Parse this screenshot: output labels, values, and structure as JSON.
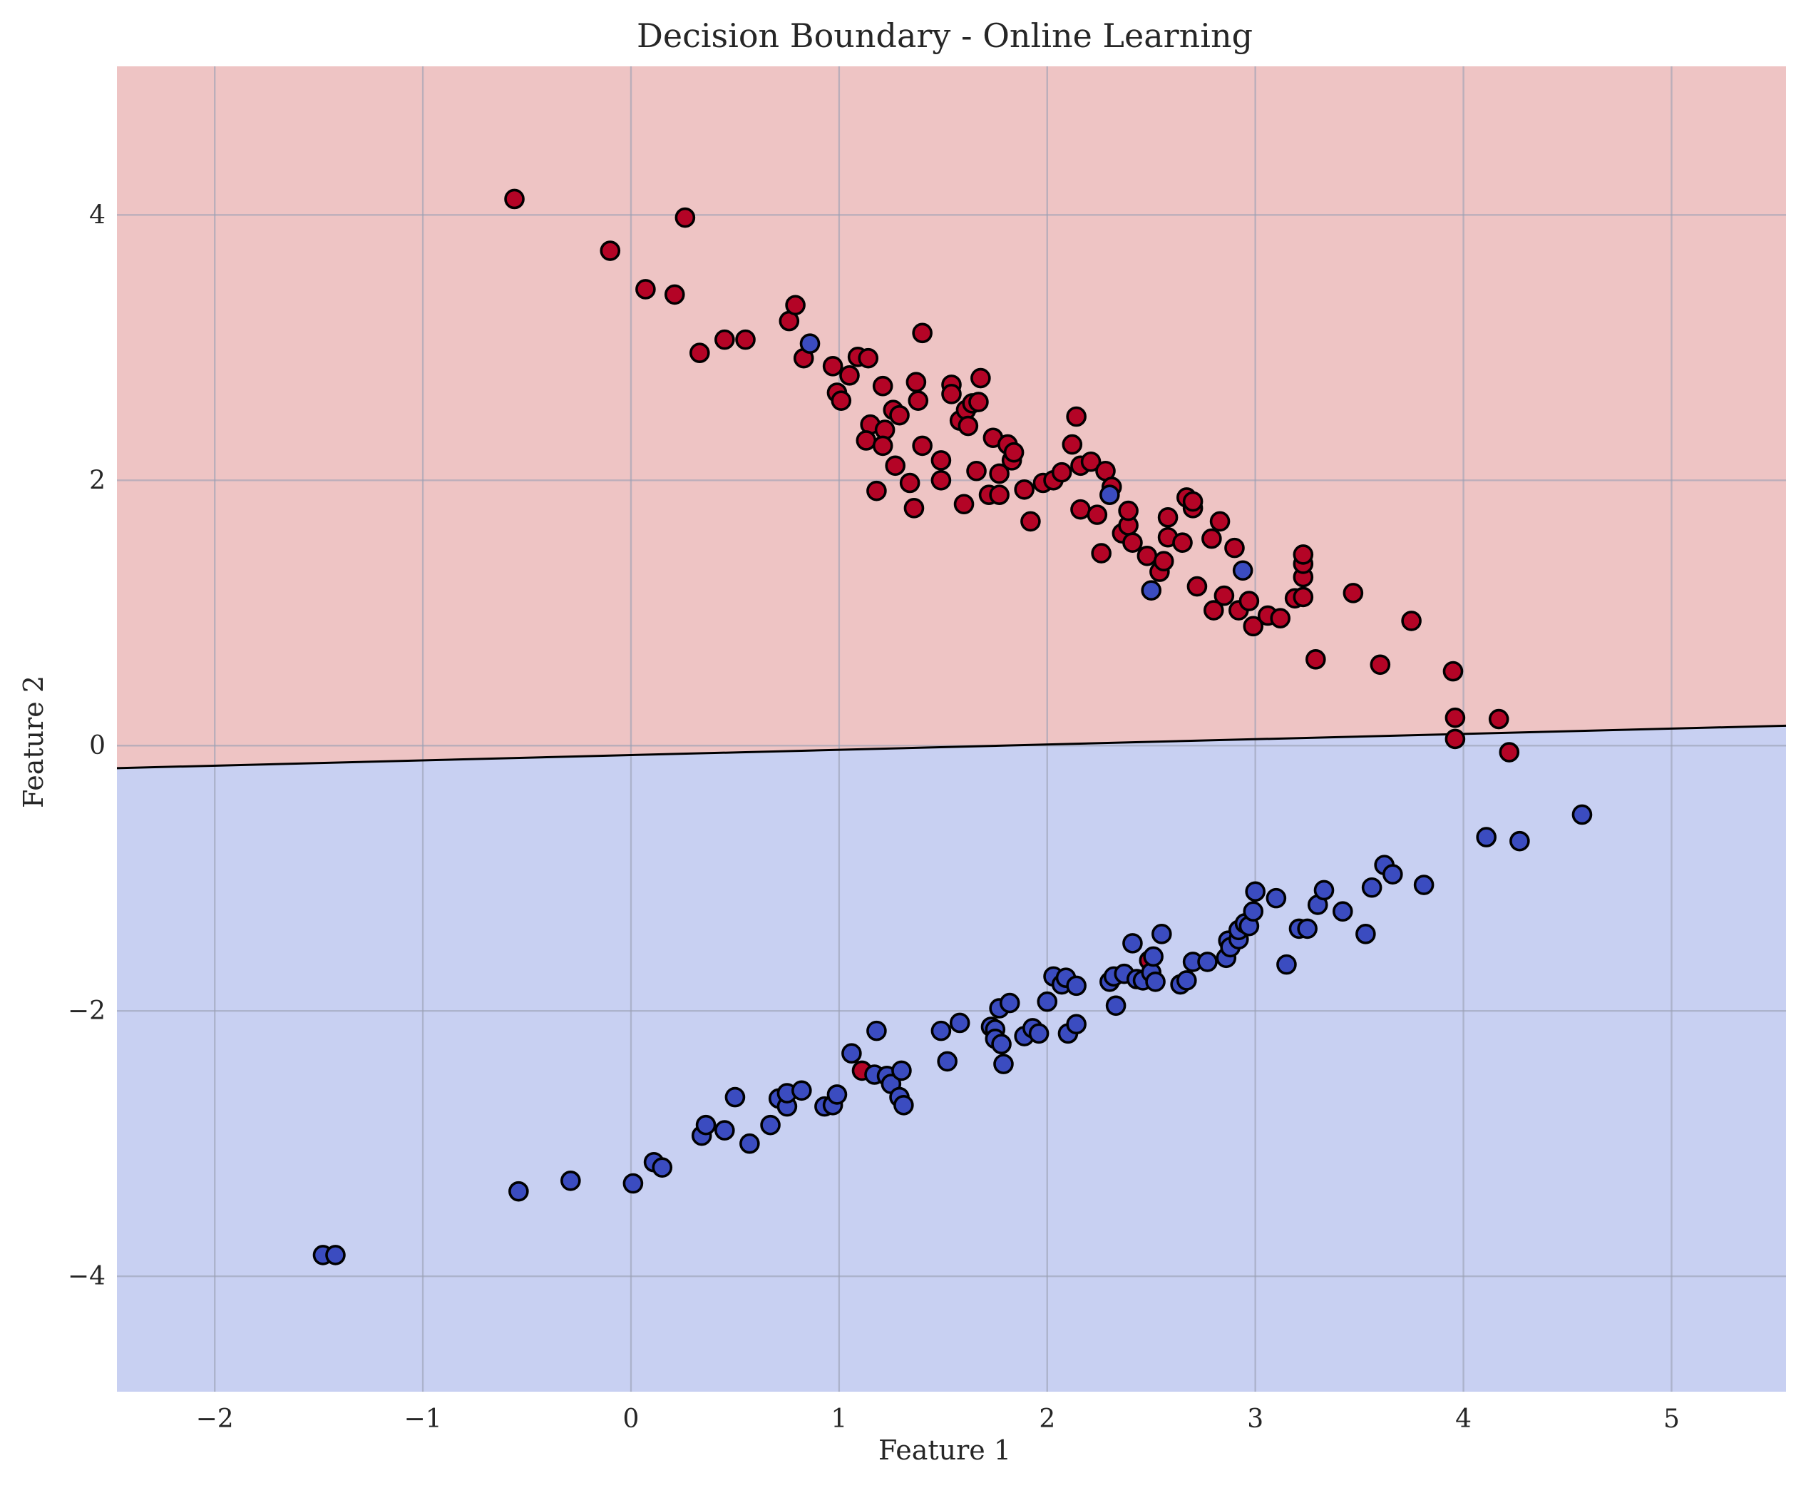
{
  "chart_data": {
    "type": "scatter",
    "title": "Decision Boundary - Online Learning",
    "xlabel": "Feature 1",
    "ylabel": "Feature 2",
    "xlim": [
      -2.47,
      5.55
    ],
    "ylim": [
      -4.87,
      5.12
    ],
    "xticks": [
      -2,
      -1,
      0,
      1,
      2,
      3,
      4,
      5
    ],
    "xtick_labels": [
      "−2",
      "−1",
      "0",
      "1",
      "2",
      "3",
      "4",
      "5"
    ],
    "yticks": [
      -4,
      -2,
      0,
      2,
      4
    ],
    "ytick_labels": [
      "−4",
      "−2",
      "0",
      "2",
      "4"
    ],
    "grid": true,
    "colors": {
      "class_1_region": "#eec4c4",
      "class_0_region": "#c8d0f2",
      "class_1_point": "#b40426",
      "class_0_point": "#3b4cc0",
      "boundary": "#000000"
    },
    "decision_boundary": {
      "x": [
        -2.47,
        5.55
      ],
      "y": [
        -0.17,
        0.15
      ]
    },
    "series": [
      {
        "class": 1,
        "points": [
          [
            -0.56,
            4.12
          ],
          [
            0.26,
            3.98
          ],
          [
            -0.1,
            3.73
          ],
          [
            0.07,
            3.44
          ],
          [
            0.21,
            3.4
          ],
          [
            0.33,
            2.96
          ],
          [
            0.45,
            3.06
          ],
          [
            0.55,
            3.06
          ],
          [
            0.76,
            3.2
          ],
          [
            0.79,
            3.32
          ],
          [
            0.83,
            2.92
          ],
          [
            0.97,
            2.86
          ],
          [
            1.05,
            2.79
          ],
          [
            1.09,
            2.93
          ],
          [
            1.14,
            2.92
          ],
          [
            0.99,
            2.66
          ],
          [
            1.01,
            2.6
          ],
          [
            1.21,
            2.71
          ],
          [
            1.26,
            2.53
          ],
          [
            1.37,
            2.74
          ],
          [
            1.4,
            3.11
          ],
          [
            1.38,
            2.6
          ],
          [
            1.29,
            2.49
          ],
          [
            1.15,
            2.42
          ],
          [
            1.22,
            2.38
          ],
          [
            1.13,
            2.3
          ],
          [
            1.21,
            2.26
          ],
          [
            1.4,
            2.26
          ],
          [
            1.27,
            2.11
          ],
          [
            1.18,
            1.92
          ],
          [
            1.34,
            1.98
          ],
          [
            1.36,
            1.79
          ],
          [
            1.49,
            2.15
          ],
          [
            1.49,
            2.0
          ],
          [
            1.54,
            2.72
          ],
          [
            1.54,
            2.65
          ],
          [
            1.58,
            2.45
          ],
          [
            1.61,
            2.53
          ],
          [
            1.64,
            2.58
          ],
          [
            1.67,
            2.59
          ],
          [
            1.68,
            2.77
          ],
          [
            1.62,
            2.41
          ],
          [
            1.6,
            1.82
          ],
          [
            1.66,
            2.07
          ],
          [
            1.72,
            1.89
          ],
          [
            1.74,
            2.32
          ],
          [
            1.77,
            2.05
          ],
          [
            1.77,
            1.89
          ],
          [
            1.81,
            2.27
          ],
          [
            1.83,
            2.15
          ],
          [
            1.84,
            2.21
          ],
          [
            1.89,
            1.93
          ],
          [
            1.92,
            1.69
          ],
          [
            1.98,
            1.98
          ],
          [
            2.03,
            2.0
          ],
          [
            2.07,
            2.06
          ],
          [
            2.12,
            2.27
          ],
          [
            2.14,
            2.48
          ],
          [
            2.16,
            2.11
          ],
          [
            2.16,
            1.78
          ],
          [
            2.21,
            2.14
          ],
          [
            2.24,
            1.74
          ],
          [
            2.26,
            1.45
          ],
          [
            2.28,
            2.07
          ],
          [
            2.31,
            1.95
          ],
          [
            2.36,
            1.6
          ],
          [
            2.39,
            1.66
          ],
          [
            2.39,
            1.77
          ],
          [
            2.41,
            1.53
          ],
          [
            2.48,
            1.43
          ],
          [
            2.54,
            1.31
          ],
          [
            2.56,
            1.39
          ],
          [
            2.58,
            1.57
          ],
          [
            2.58,
            1.72
          ],
          [
            2.65,
            1.53
          ],
          [
            2.67,
            1.87
          ],
          [
            2.7,
            1.79
          ],
          [
            2.7,
            1.84
          ],
          [
            2.72,
            1.2
          ],
          [
            2.79,
            1.56
          ],
          [
            2.8,
            1.02
          ],
          [
            2.83,
            1.69
          ],
          [
            2.85,
            1.13
          ],
          [
            2.9,
            1.49
          ],
          [
            2.92,
            1.02
          ],
          [
            2.97,
            1.09
          ],
          [
            2.99,
            0.9
          ],
          [
            3.06,
            0.98
          ],
          [
            3.12,
            0.96
          ],
          [
            3.19,
            1.11
          ],
          [
            3.23,
            1.12
          ],
          [
            3.23,
            1.27
          ],
          [
            3.23,
            1.37
          ],
          [
            3.23,
            1.44
          ],
          [
            3.29,
            0.65
          ],
          [
            3.47,
            1.15
          ],
          [
            3.6,
            0.61
          ],
          [
            3.75,
            0.94
          ],
          [
            3.95,
            0.56
          ],
          [
            3.96,
            0.21
          ],
          [
            3.96,
            0.05
          ],
          [
            4.17,
            0.2
          ],
          [
            4.22,
            -0.05
          ],
          [
            2.49,
            -1.62
          ],
          [
            1.11,
            -2.45
          ]
        ]
      },
      {
        "class": 0,
        "points": [
          [
            0.86,
            3.03
          ],
          [
            2.3,
            1.89
          ],
          [
            2.94,
            1.32
          ],
          [
            2.5,
            1.17
          ],
          [
            -1.48,
            -3.84
          ],
          [
            -1.42,
            -3.84
          ],
          [
            -0.54,
            -3.36
          ],
          [
            -0.29,
            -3.28
          ],
          [
            0.01,
            -3.3
          ],
          [
            0.11,
            -3.14
          ],
          [
            0.15,
            -3.18
          ],
          [
            0.34,
            -2.94
          ],
          [
            0.36,
            -2.86
          ],
          [
            0.45,
            -2.9
          ],
          [
            0.5,
            -2.65
          ],
          [
            0.57,
            -3.0
          ],
          [
            0.67,
            -2.86
          ],
          [
            0.71,
            -2.66
          ],
          [
            0.75,
            -2.72
          ],
          [
            0.75,
            -2.62
          ],
          [
            0.82,
            -2.6
          ],
          [
            0.93,
            -2.72
          ],
          [
            0.97,
            -2.71
          ],
          [
            0.99,
            -2.63
          ],
          [
            1.06,
            -2.32
          ],
          [
            1.17,
            -2.48
          ],
          [
            1.18,
            -2.15
          ],
          [
            1.23,
            -2.49
          ],
          [
            1.25,
            -2.55
          ],
          [
            1.29,
            -2.65
          ],
          [
            1.3,
            -2.45
          ],
          [
            1.31,
            -2.71
          ],
          [
            1.49,
            -2.15
          ],
          [
            1.52,
            -2.38
          ],
          [
            1.58,
            -2.09
          ],
          [
            1.73,
            -2.12
          ],
          [
            1.75,
            -2.14
          ],
          [
            1.75,
            -2.21
          ],
          [
            1.77,
            -1.98
          ],
          [
            1.78,
            -2.25
          ],
          [
            1.79,
            -2.4
          ],
          [
            1.82,
            -1.94
          ],
          [
            1.89,
            -2.19
          ],
          [
            1.93,
            -2.13
          ],
          [
            1.96,
            -2.17
          ],
          [
            2.0,
            -1.93
          ],
          [
            2.03,
            -1.74
          ],
          [
            2.07,
            -1.8
          ],
          [
            2.09,
            -1.75
          ],
          [
            2.1,
            -2.17
          ],
          [
            2.14,
            -2.1
          ],
          [
            2.14,
            -1.81
          ],
          [
            2.3,
            -1.78
          ],
          [
            2.32,
            -1.74
          ],
          [
            2.33,
            -1.96
          ],
          [
            2.37,
            -1.72
          ],
          [
            2.41,
            -1.49
          ],
          [
            2.43,
            -1.76
          ],
          [
            2.46,
            -1.77
          ],
          [
            2.5,
            -1.71
          ],
          [
            2.51,
            -1.59
          ],
          [
            2.52,
            -1.78
          ],
          [
            2.55,
            -1.42
          ],
          [
            2.64,
            -1.8
          ],
          [
            2.67,
            -1.77
          ],
          [
            2.7,
            -1.63
          ],
          [
            2.77,
            -1.63
          ],
          [
            2.86,
            -1.6
          ],
          [
            2.87,
            -1.47
          ],
          [
            2.88,
            -1.52
          ],
          [
            2.92,
            -1.46
          ],
          [
            2.92,
            -1.39
          ],
          [
            2.95,
            -1.34
          ],
          [
            2.97,
            -1.36
          ],
          [
            2.99,
            -1.25
          ],
          [
            3.0,
            -1.1
          ],
          [
            3.1,
            -1.15
          ],
          [
            3.15,
            -1.65
          ],
          [
            3.21,
            -1.38
          ],
          [
            3.25,
            -1.38
          ],
          [
            3.3,
            -1.2
          ],
          [
            3.33,
            -1.09
          ],
          [
            3.42,
            -1.25
          ],
          [
            3.53,
            -1.42
          ],
          [
            3.56,
            -1.07
          ],
          [
            3.62,
            -0.9
          ],
          [
            3.66,
            -0.97
          ],
          [
            3.81,
            -1.05
          ],
          [
            4.11,
            -0.69
          ],
          [
            4.27,
            -0.72
          ],
          [
            4.57,
            -0.52
          ]
        ]
      }
    ]
  }
}
